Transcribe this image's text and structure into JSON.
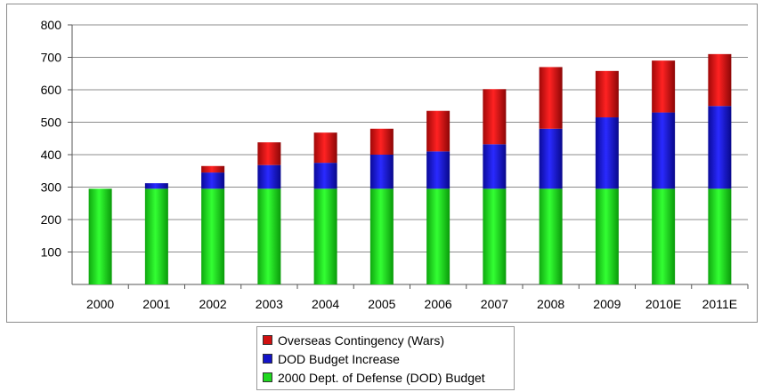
{
  "chart_data": {
    "type": "bar",
    "stacked": true,
    "categories": [
      "2000",
      "2001",
      "2002",
      "2003",
      "2004",
      "2005",
      "2006",
      "2007",
      "2008",
      "2009",
      "2010E",
      "2011E"
    ],
    "series": [
      {
        "name": "2000 Dept. of Defense (DOD) Budget",
        "color": "#1fd81f",
        "values": [
          295,
          295,
          295,
          295,
          295,
          295,
          295,
          295,
          295,
          295,
          295,
          295
        ]
      },
      {
        "name": "DOD Budget Increase",
        "color": "#1414c8",
        "values": [
          0,
          17,
          50,
          73,
          80,
          105,
          115,
          137,
          185,
          220,
          235,
          255
        ]
      },
      {
        "name": "Overseas Contingency (Wars)",
        "color": "#d01010",
        "values": [
          0,
          0,
          20,
          70,
          93,
          80,
          125,
          170,
          190,
          143,
          160,
          160
        ]
      }
    ],
    "yticks": [
      100,
      200,
      300,
      400,
      500,
      600,
      700,
      800
    ],
    "ylim": [
      0,
      800
    ],
    "grid": true,
    "legend_position": "bottom",
    "legend_order": [
      "Overseas Contingency (Wars)",
      "DOD Budget Increase",
      "2000 Dept. of Defense (DOD) Budget"
    ]
  }
}
